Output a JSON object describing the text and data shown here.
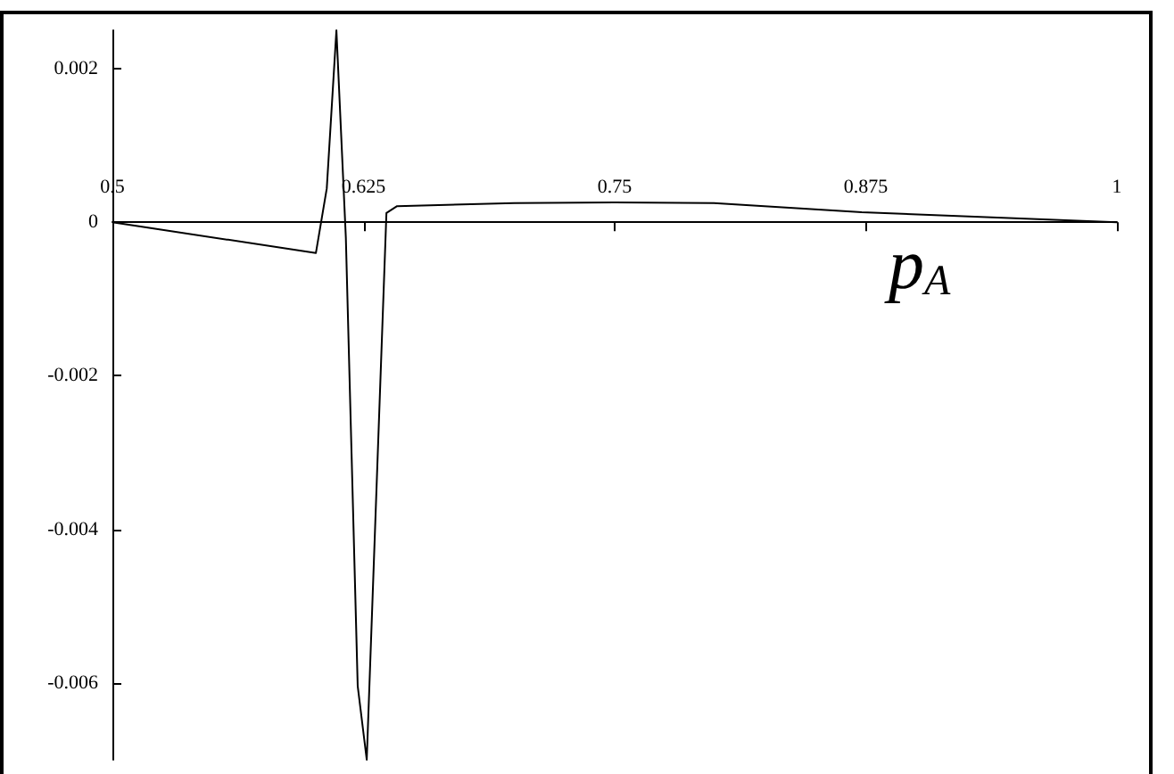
{
  "chart_data": {
    "type": "line",
    "xlabel": "p$_{A}$",
    "x": [
      0.5,
      0.6013,
      0.6067,
      0.6115,
      0.6162,
      0.6221,
      0.6266,
      0.6364,
      0.6417,
      0.7,
      0.75,
      0.7994,
      0.873,
      1
    ],
    "series": [
      {
        "color": "#000000",
        "values": [
          0,
          -0.0004,
          0.00044,
          0.0025,
          -0.0002,
          -0.00604,
          -0.007,
          0.00012,
          0.00021,
          0.00025,
          0.00026,
          0.00025,
          0.00013,
          0
        ]
      }
    ],
    "xlim": [
      0.5,
      1
    ],
    "xticks": [
      0.5,
      0.625,
      0.75,
      0.875,
      1
    ],
    "ylim": [
      -0.007,
      0.0025
    ],
    "yticks": [
      -0.006,
      -0.004,
      -0.002,
      0,
      0.002
    ],
    "grid": false,
    "marker": "none",
    "line_style": "solid"
  }
}
